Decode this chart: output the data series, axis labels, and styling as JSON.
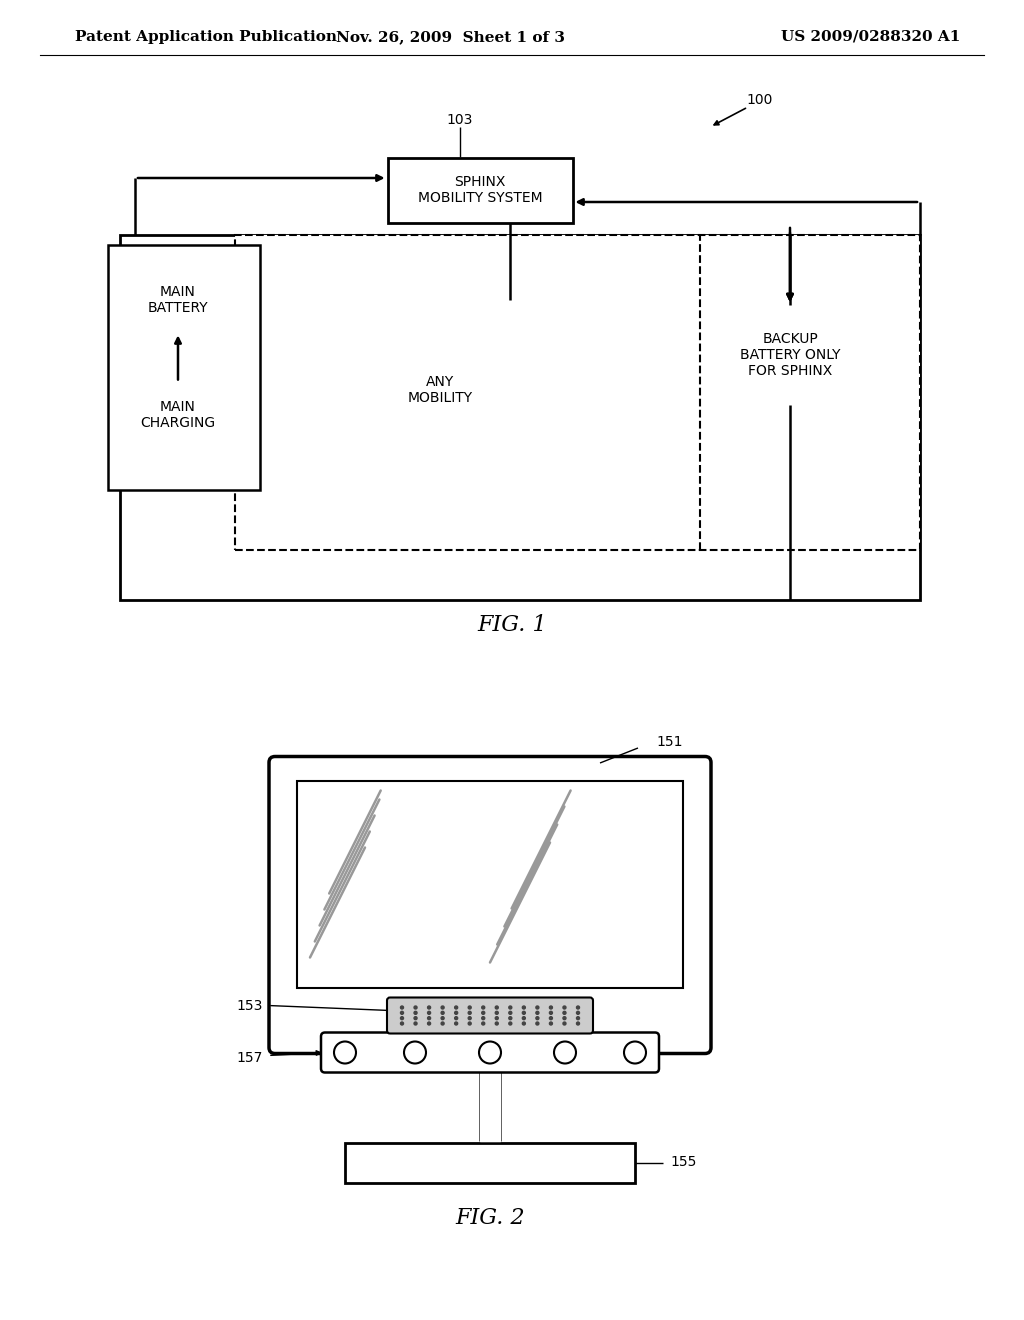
{
  "bg_color": "#ffffff",
  "header_left": "Patent Application Publication",
  "header_mid": "Nov. 26, 2009  Sheet 1 of 3",
  "header_right": "US 2009/0288320 A1",
  "fig1_label": "FIG. 1",
  "fig2_label": "FIG. 2",
  "line_color": "#000000",
  "dash_color": "#000000"
}
